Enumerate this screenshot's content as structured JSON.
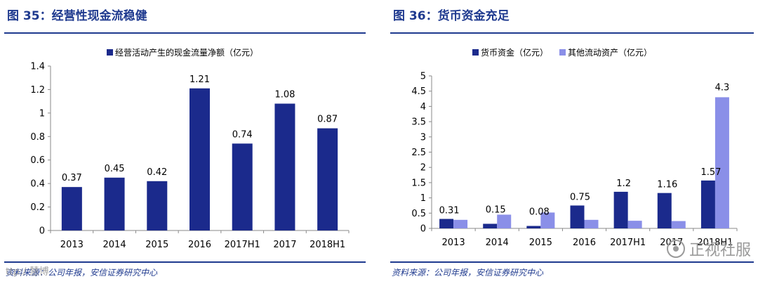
{
  "figures": [
    {
      "title": "图 35：经营性现金流稳健",
      "source": "资料来源：公司年报，安信证券研究中心"
    },
    {
      "title": "图 36：货币资金充足",
      "source": "资料来源：公司年报，安信证券研究中心"
    }
  ],
  "watermark": {
    "text": "正视社服"
  },
  "watermark_left": {
    "text": "ttp:/ 慧博"
  },
  "colors": {
    "title": "#1f3a8f",
    "series_dark": "#1b2a8c",
    "series_light": "#8a8fe8"
  },
  "chart_data": [
    {
      "type": "bar",
      "categories": [
        "2013",
        "2014",
        "2015",
        "2016",
        "2017H1",
        "2017",
        "2018H1"
      ],
      "series": [
        {
          "name": "经营活动产生的现金流量净额（亿元）",
          "values": [
            0.37,
            0.45,
            0.42,
            1.21,
            0.74,
            1.08,
            0.87
          ]
        }
      ],
      "data_labels": [
        "0.37",
        "0.45",
        "0.42",
        "1.21",
        "0.74",
        "1.08",
        "0.87"
      ],
      "yticks": [
        "0",
        "0.2",
        "0.4",
        "0.6",
        "0.8",
        "1",
        "1.2",
        "1.4"
      ],
      "ylim": [
        0,
        1.4
      ],
      "legend": "top-center",
      "grid": false
    },
    {
      "type": "bar",
      "categories": [
        "2013",
        "2014",
        "2015",
        "2016",
        "2017H1",
        "2017",
        "2018H1"
      ],
      "series": [
        {
          "name": "货币资金（亿元）",
          "values": [
            0.31,
            0.15,
            0.08,
            0.75,
            1.2,
            1.16,
            1.57
          ]
        },
        {
          "name": "其他流动资产（亿元）",
          "values": [
            0.28,
            0.45,
            0.52,
            0.28,
            0.25,
            0.24,
            4.3
          ]
        }
      ],
      "data_labels": [
        "0.31",
        "0.15",
        "0.08",
        "0.75",
        "1.2",
        "1.16",
        "1.57",
        "4.3"
      ],
      "yticks": [
        "0",
        "0.5",
        "1",
        "1.5",
        "2",
        "2.5",
        "3",
        "3.5",
        "4",
        "4.5",
        "5"
      ],
      "ylim": [
        0,
        5
      ],
      "legend": "top-center",
      "grid": false
    }
  ]
}
